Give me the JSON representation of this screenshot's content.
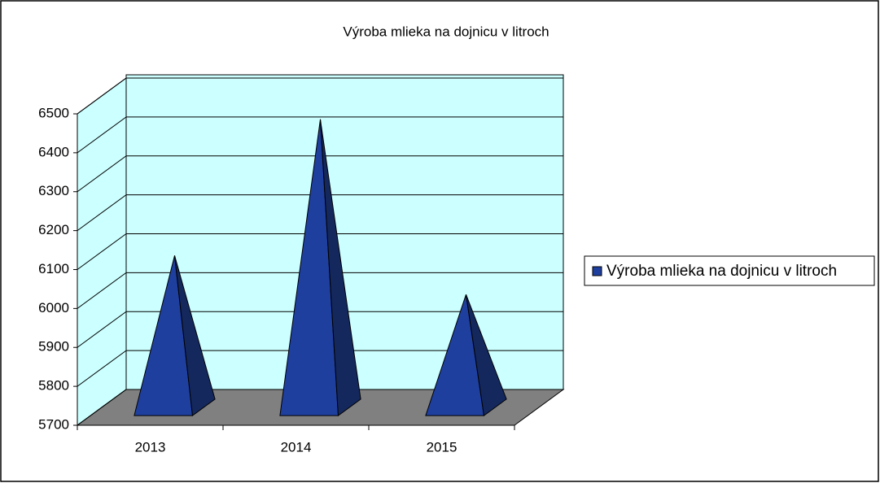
{
  "chart_data": {
    "type": "pyramid",
    "title": "Výroba mlieka na dojnicu v litroch",
    "categories": [
      "2013",
      "2014",
      "2015"
    ],
    "series": [
      {
        "name": "Výroba mlieka na dojnicu v litroch",
        "color": "#1f3f9f",
        "values": [
          6090,
          6440,
          5990
        ]
      }
    ],
    "ylim": [
      5700,
      6500
    ],
    "yticks": [
      5700,
      5800,
      5900,
      6000,
      6100,
      6200,
      6300,
      6400,
      6500
    ],
    "grid": true,
    "legend": "right"
  }
}
